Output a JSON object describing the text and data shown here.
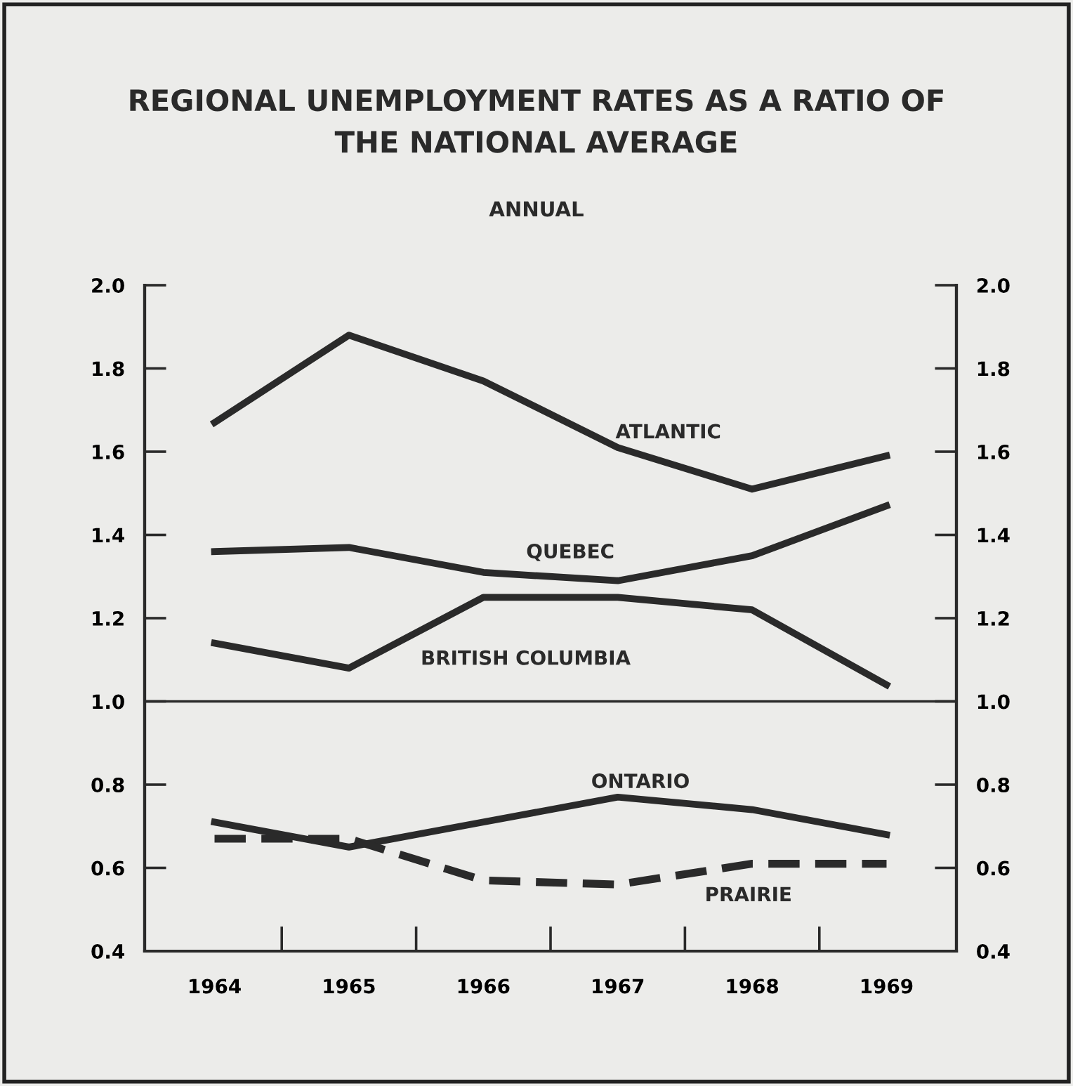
{
  "chart_data": {
    "type": "line",
    "title": "REGIONAL UNEMPLOYMENT RATES AS A RATIO OF\nTHE NATIONAL AVERAGE",
    "subtitle": "ANNUAL",
    "categories": [
      "1964",
      "1965",
      "1966",
      "1967",
      "1968",
      "1969"
    ],
    "series": [
      {
        "name": "ATLANTIC",
        "color": "#2a2a2a",
        "values": [
          1.67,
          1.88,
          1.77,
          1.61,
          1.51,
          1.59
        ]
      },
      {
        "name": "QUEBEC",
        "color": "#2a2a2a",
        "values": [
          1.36,
          1.37,
          1.31,
          1.29,
          1.35,
          1.47
        ]
      },
      {
        "name": "BRITISH COLUMBIA",
        "color": "#2a2a2a",
        "values": [
          1.14,
          1.08,
          1.25,
          1.25,
          1.22,
          1.04
        ]
      },
      {
        "name": "ONTARIO",
        "color": "#2a2a2a",
        "values": [
          0.71,
          0.65,
          0.71,
          0.77,
          0.74,
          0.68
        ]
      },
      {
        "name": "PRAIRIE",
        "color": "#2a2a2a",
        "line_style": "dashed",
        "values": [
          0.67,
          0.67,
          0.57,
          0.56,
          0.61,
          0.61
        ]
      }
    ],
    "ylim": [
      0.4,
      2.0
    ],
    "yticks": [
      0.4,
      0.6,
      0.8,
      {
        "value": 1.0,
        "label": "1.0"
      },
      1.2,
      1.4,
      1.6,
      1.8,
      {
        "value": 2.0,
        "label": "2.0"
      }
    ],
    "y2lim": [
      0.4,
      2.0
    ],
    "y2ticks": [
      0.4,
      0.6,
      0.8,
      {
        "value": 1.0,
        "label": "1.0"
      },
      1.2,
      1.4,
      1.6,
      1.8,
      {
        "value": 2.0,
        "label": "2.0"
      }
    ],
    "ref_lines": [
      {
        "axis": "y",
        "value": 1.0,
        "color": "#2a2a2a"
      }
    ],
    "grid": false,
    "legend": false,
    "marker": "none",
    "line_style": "solid"
  }
}
